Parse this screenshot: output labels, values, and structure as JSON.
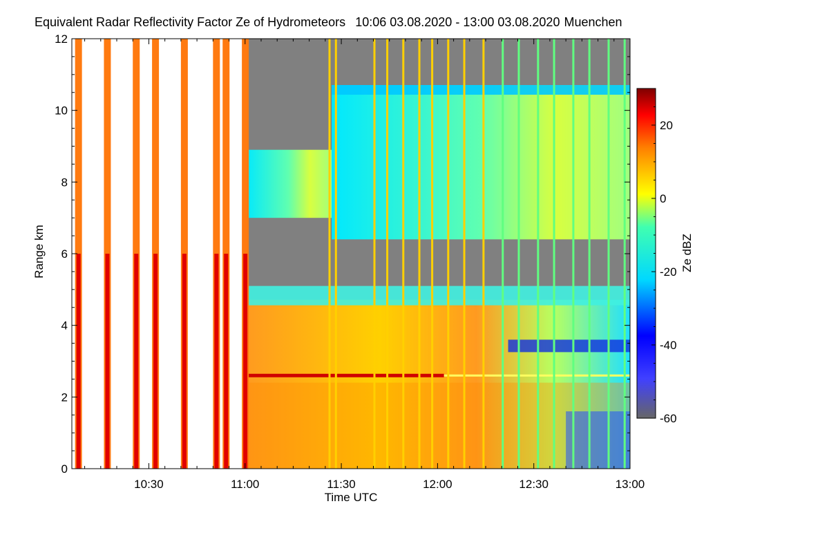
{
  "title": {
    "main": "Equivalent Radar Reflectivity Factor Ze of Hydrometeors",
    "time_range": "10:06 03.08.2020 - 13:00 03.08.2020",
    "location": "Muenchen"
  },
  "chart_data": {
    "type": "heatmap",
    "title": "Equivalent Radar Reflectivity Factor Ze of Hydrometeors   10:06 03.08.2020 - 13:00 03.08.2020 Muenchen",
    "xlabel": "Time UTC",
    "ylabel": "Range km",
    "colorbar_label": "Ze dBZ",
    "x_range": [
      "10:06",
      "13:00"
    ],
    "x_ticks": [
      "10:30",
      "11:00",
      "11:30",
      "12:00",
      "12:30",
      "13:00"
    ],
    "ylim": [
      0,
      12
    ],
    "y_ticks": [
      0,
      2,
      4,
      6,
      8,
      10,
      12
    ],
    "colorbar_range": [
      -60,
      30
    ],
    "colorbar_ticks": [
      20,
      0,
      -20,
      -40,
      -60
    ],
    "colormap": [
      "#7f0000",
      "#ff0000",
      "#ff8000",
      "#ffff00",
      "#80ff80",
      "#00ffff",
      "#0080ff",
      "#0000ff",
      "#808080"
    ],
    "no_signal_color": "#808080",
    "features": {
      "upper_cloud_layer_km": [
        7.0,
        10.9
      ],
      "lower_cloud_layer_km": [
        0,
        5.1
      ],
      "melting_layer_km": 2.6,
      "full_column_spikes_until": "11:00",
      "continuous_data_from": "11:00"
    }
  }
}
